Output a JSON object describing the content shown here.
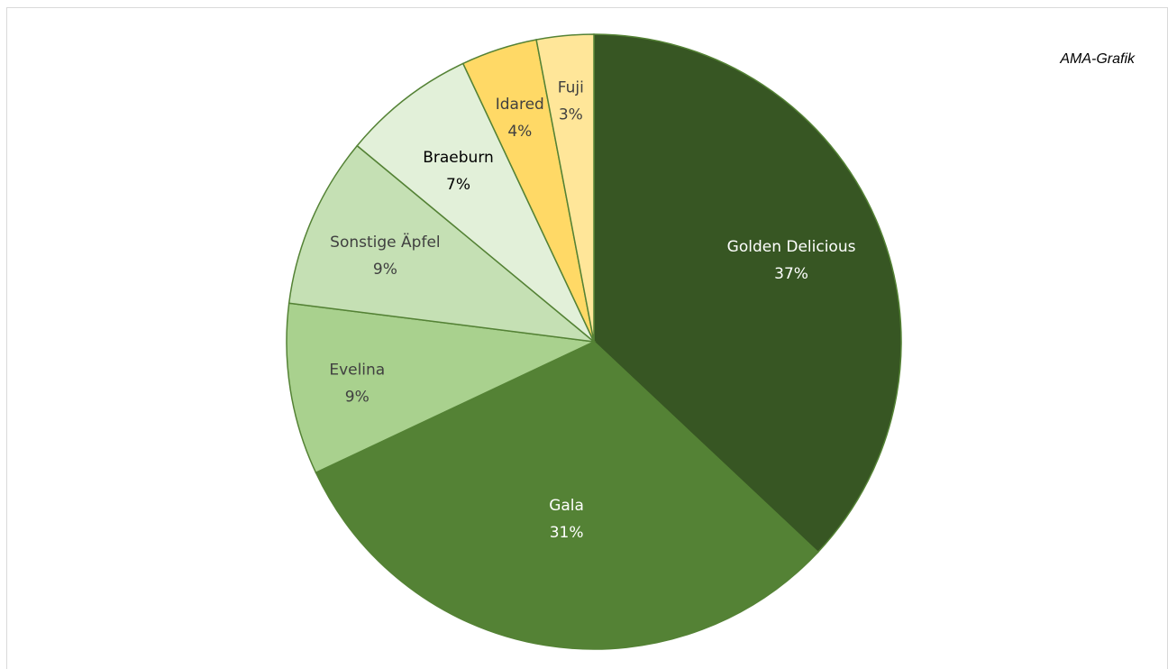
{
  "source_label": "AMA-Grafik",
  "chart_data": {
    "type": "pie",
    "title": "",
    "slices": [
      {
        "name": "Golden Delicious",
        "value": 37,
        "label": "37%",
        "color": "#375623",
        "text_color": "#ffffff"
      },
      {
        "name": "Gala",
        "value": 31,
        "label": "31%",
        "color": "#548235",
        "text_color": "#ffffff"
      },
      {
        "name": "Evelina",
        "value": 9,
        "label": "9%",
        "color": "#a9d18e",
        "text_color": "#404040"
      },
      {
        "name": "Sonstige Äpfel",
        "value": 9,
        "label": "9%",
        "color": "#c5e0b4",
        "text_color": "#404040"
      },
      {
        "name": "Braeburn",
        "value": 7,
        "label": "7%",
        "color": "#e2f0d9",
        "text_color": "#000000"
      },
      {
        "name": "Idared",
        "value": 4,
        "label": "4%",
        "color": "#ffd966",
        "text_color": "#404040"
      },
      {
        "name": "Fuji",
        "value": 3,
        "label": "3%",
        "color": "#ffe699",
        "text_color": "#404040"
      }
    ],
    "slice_border_color": "#548235",
    "legend": "none"
  }
}
